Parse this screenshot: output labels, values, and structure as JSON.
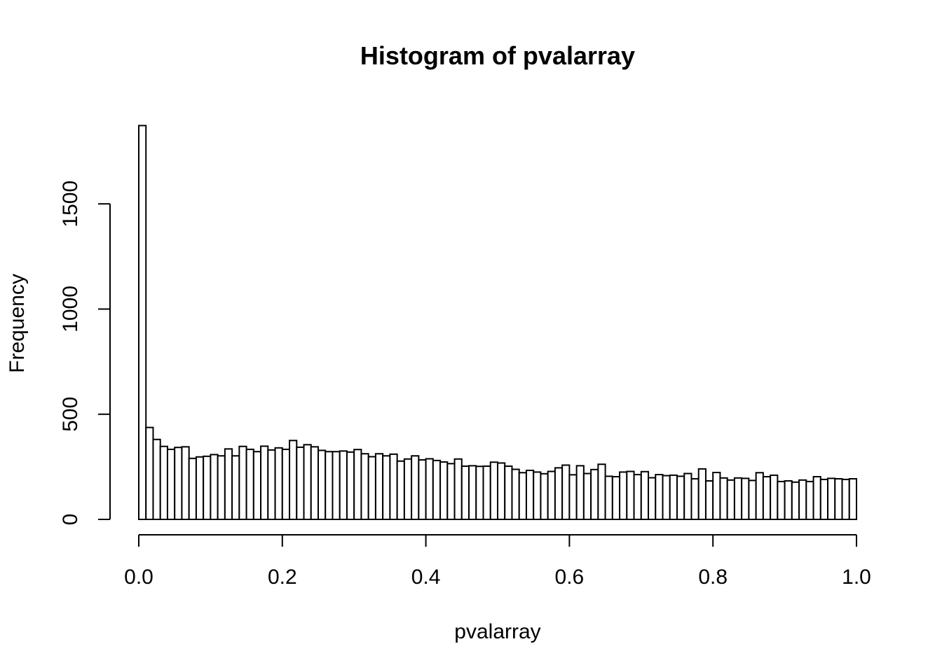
{
  "chart_data": {
    "type": "bar",
    "title": "Histogram of pvalarray",
    "xlabel": "pvalarray",
    "ylabel": "Frequency",
    "xlim": [
      0,
      1
    ],
    "ylim": [
      0,
      1870
    ],
    "bin_width": 0.01,
    "x_ticks": [
      0,
      0.2,
      0.4,
      0.6,
      0.8,
      1.0
    ],
    "x_tick_labels": [
      "0.0",
      "0.2",
      "0.4",
      "0.6",
      "0.8",
      "1.0"
    ],
    "y_ticks": [
      0,
      500,
      1000,
      1500
    ],
    "y_tick_labels": [
      "0",
      "500",
      "1000",
      "1500"
    ],
    "grid": false,
    "bar_fill": "#ffffff",
    "bar_stroke": "#000000",
    "values": [
      1872,
      437,
      380,
      347,
      333,
      342,
      345,
      290,
      297,
      300,
      308,
      302,
      335,
      302,
      347,
      333,
      322,
      348,
      330,
      340,
      333,
      375,
      343,
      355,
      345,
      328,
      322,
      322,
      325,
      320,
      332,
      312,
      298,
      312,
      302,
      310,
      277,
      287,
      302,
      283,
      288,
      280,
      273,
      265,
      287,
      253,
      255,
      252,
      253,
      272,
      268,
      253,
      238,
      222,
      233,
      225,
      217,
      228,
      245,
      258,
      212,
      255,
      218,
      237,
      262,
      205,
      203,
      225,
      228,
      213,
      227,
      198,
      213,
      208,
      210,
      205,
      218,
      193,
      240,
      183,
      223,
      197,
      187,
      197,
      195,
      185,
      222,
      203,
      210,
      180,
      183,
      177,
      187,
      180,
      203,
      190,
      195,
      193,
      190,
      193
    ]
  }
}
